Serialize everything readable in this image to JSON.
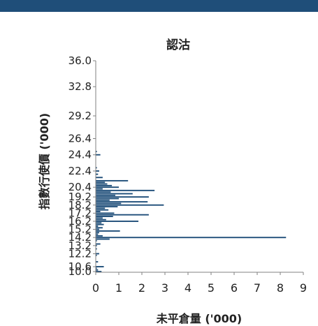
{
  "colors": {
    "header_bar": "#1f4e79",
    "bar": "#1f4e79",
    "axis": "#808080"
  },
  "chart_data": {
    "type": "bar",
    "orientation": "horizontal",
    "title": "認沽",
    "xlabel": "未平倉量 ('000)",
    "ylabel": "指數行使價 ('000)",
    "xlim": [
      0,
      9
    ],
    "ylim": [
      10.0,
      36.0
    ],
    "xticks": [
      "0",
      "1",
      "2",
      "3",
      "4",
      "5",
      "6",
      "7",
      "8",
      "9"
    ],
    "yticks": [
      "10.0",
      "10.6",
      "12.2",
      "13.2",
      "14.2",
      "15.2",
      "16.2",
      "17.2",
      "18.2",
      "19.2",
      "20.4",
      "22.4",
      "24.4",
      "26.4",
      "29.2",
      "32.8",
      "36.0"
    ],
    "categories": [
      "10.0",
      "10.2",
      "10.4",
      "10.6",
      "11.2",
      "12.0",
      "12.2",
      "12.8",
      "13.2",
      "13.4",
      "13.8",
      "14.0",
      "14.2",
      "14.4",
      "14.6",
      "14.8",
      "15.0",
      "15.2",
      "15.4",
      "15.6",
      "15.8",
      "16.0",
      "16.2",
      "16.4",
      "16.6",
      "16.8",
      "17.0",
      "17.2",
      "17.4",
      "17.6",
      "17.8",
      "18.0",
      "18.2",
      "18.4",
      "18.6",
      "18.8",
      "19.0",
      "19.2",
      "19.4",
      "19.6",
      "19.8",
      "20.0",
      "20.2",
      "20.4",
      "20.6",
      "20.8",
      "21.0",
      "21.2",
      "21.6",
      "22.0",
      "22.4",
      "22.8",
      "24.4",
      "24.8"
    ],
    "values": [
      0.25,
      0.1,
      0.05,
      0.35,
      0.1,
      0.05,
      0.15,
      0.05,
      0.05,
      0.2,
      0.05,
      0.6,
      8.25,
      0.3,
      0.1,
      0.15,
      1.05,
      0.15,
      0.3,
      0.1,
      0.35,
      0.25,
      1.85,
      0.45,
      0.3,
      0.75,
      2.3,
      0.8,
      0.2,
      0.55,
      0.4,
      0.95,
      2.95,
      1.1,
      2.25,
      0.6,
      1.0,
      2.3,
      0.85,
      1.6,
      0.65,
      2.55,
      0.3,
      1.0,
      0.7,
      0.5,
      0.4,
      1.4,
      0.3,
      0.1,
      0.15,
      0.05,
      0.2,
      0.05
    ]
  }
}
